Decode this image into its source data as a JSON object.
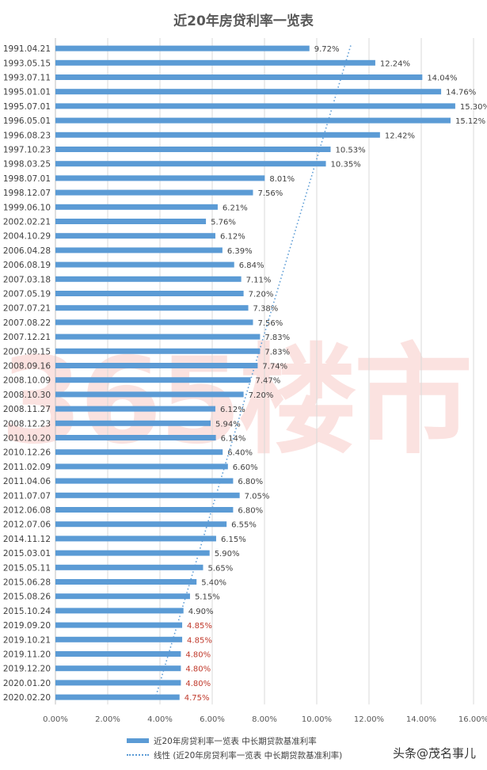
{
  "credit": "头条@茂名事儿",
  "watermark": "365楼市",
  "legend": {
    "series": "近20年房贷利率一览表 中长期贷款基准利率",
    "trend": "线性 (近20年房贷利率一览表 中长期贷款基准利率)"
  },
  "colors": {
    "bar": "#5b9bd5",
    "trend": "#5b9bd5",
    "highlight": "#c0392b"
  },
  "chart_data": {
    "type": "bar",
    "orientation": "horizontal",
    "title": "近20年房贷利率一览表",
    "categories": [
      "1991.04.21",
      "1993.05.15",
      "1993.07.11",
      "1995.01.01",
      "1995.07.01",
      "1996.05.01",
      "1996.08.23",
      "1997.10.23",
      "1998.03.25",
      "1998.07.01",
      "1998.12.07",
      "1999.06.10",
      "2002.02.21",
      "2004.10.29",
      "2006.04.28",
      "2006.08.19",
      "2007.03.18",
      "2007.05.19",
      "2007.07.21",
      "2007.08.22",
      "2007.12.21",
      "2007.09.15",
      "2008.09.16",
      "2008.10.09",
      "2008.10.30",
      "2008.11.27",
      "2008.12.23",
      "2010.10.20",
      "2010.12.26",
      "2011.02.09",
      "2011.04.06",
      "2011.07.07",
      "2012.06.08",
      "2012.07.06",
      "2014.11.12",
      "2015.03.01",
      "2015.05.11",
      "2015.06.28",
      "2015.08.26",
      "2015.10.24",
      "2019.09.20",
      "2019.10.21",
      "2019.11.20",
      "2019.12.20",
      "2020.01.20",
      "2020.02.20"
    ],
    "values": [
      9.72,
      12.24,
      14.04,
      14.76,
      15.3,
      15.12,
      12.42,
      10.53,
      10.35,
      8.01,
      7.56,
      6.21,
      5.76,
      6.12,
      6.39,
      6.84,
      7.11,
      7.2,
      7.38,
      7.56,
      7.83,
      7.83,
      7.74,
      7.47,
      7.2,
      6.12,
      5.94,
      6.14,
      6.4,
      6.6,
      6.8,
      7.05,
      6.8,
      6.55,
      6.15,
      5.9,
      5.65,
      5.4,
      5.15,
      4.9,
      4.85,
      4.85,
      4.8,
      4.8,
      4.8,
      4.75
    ],
    "labels": [
      "9.72%",
      "12.24%",
      "14.04%",
      "14.76%",
      "15.30%",
      "15.12%",
      "12.42%",
      "10.53%",
      "10.35%",
      "8.01%",
      "7.56%",
      "6.21%",
      "5.76%",
      "6.12%",
      "6.39%",
      "6.84%",
      "7.11%",
      "7.20%",
      "7.38%",
      "7.56%",
      "7.83%",
      "7.83%",
      "7.74%",
      "7.47%",
      "7.20%",
      "6.12%",
      "5.94%",
      "6.14%",
      "6.40%",
      "6.60%",
      "6.80%",
      "7.05%",
      "6.80%",
      "6.55%",
      "6.15%",
      "5.90%",
      "5.65%",
      "5.40%",
      "5.15%",
      "4.90%",
      "4.85%",
      "4.85%",
      "4.80%",
      "4.80%",
      "4.80%",
      "4.75%"
    ],
    "highlighted_from_index": 40,
    "xlim": [
      0,
      16
    ],
    "x_ticks": [
      "0.00%",
      "2.00%",
      "4.00%",
      "6.00%",
      "8.00%",
      "10.00%",
      "12.00%",
      "14.00%",
      "16.00%"
    ],
    "trendline": {
      "type": "linear",
      "start_value": 11.3,
      "end_value": 3.8
    },
    "grid": true,
    "legend_position": "bottom"
  }
}
